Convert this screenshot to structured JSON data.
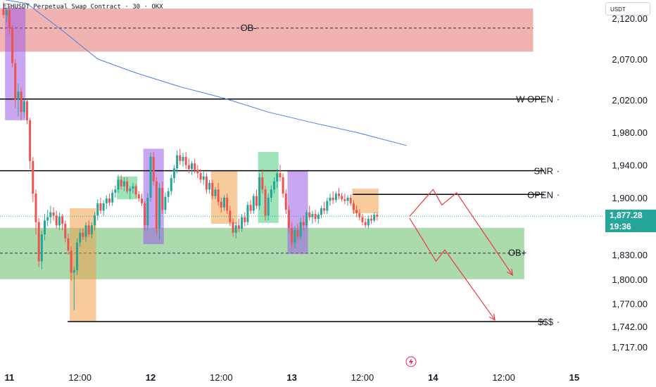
{
  "header": {
    "symbol_line": "ETHUSDT Perpetual Swap Contract · 30 · OKX"
  },
  "currency_label": "USDT",
  "current_price": {
    "value": "1,877.28",
    "countdown": "19:36",
    "price": 1877.28
  },
  "colors": {
    "up": "#26a69a",
    "down": "#ef5350",
    "supply_zone": "#e57373",
    "demand_zone": "#66bb6a",
    "orange_box": "#f0a14a",
    "purple_box": "#9c5ce6",
    "green_box": "#4cd080",
    "ma": "#4a7fe8",
    "projection": "#f23645",
    "level": "#000000"
  },
  "chart_data": {
    "type": "candlestick",
    "title": "ETHUSDT Perpetual Swap Contract · 30 · OKX",
    "ylim": [
      1705,
      2145
    ],
    "y_ticks": [
      {
        "label": "2,120.00",
        "value": 2120
      },
      {
        "label": "2,070.00",
        "value": 2070
      },
      {
        "label": "2,020.00",
        "value": 2020
      },
      {
        "label": "1,980.00",
        "value": 1980
      },
      {
        "label": "1,940.00",
        "value": 1940
      },
      {
        "label": "1,900.00",
        "value": 1900
      },
      {
        "label": "1,830.00",
        "value": 1830
      },
      {
        "label": "1,800.00",
        "value": 1800
      },
      {
        "label": "1,770.00",
        "value": 1770
      },
      {
        "label": "1,742.00",
        "value": 1742
      },
      {
        "label": "1,717.00",
        "value": 1717
      }
    ],
    "x_ticks": [
      {
        "label": "11",
        "bar": 2,
        "bold": true
      },
      {
        "label": "12:00",
        "bar": 26,
        "bold": false
      },
      {
        "label": "12",
        "bar": 50,
        "bold": true
      },
      {
        "label": "12:00",
        "bar": 74,
        "bold": false
      },
      {
        "label": "13",
        "bar": 98,
        "bold": true
      },
      {
        "label": "12:00",
        "bar": 122,
        "bold": false
      },
      {
        "label": "14",
        "bar": 146,
        "bold": true
      },
      {
        "label": "12:00",
        "bar": 170,
        "bold": false
      },
      {
        "label": "15",
        "bar": 194,
        "bold": true
      }
    ],
    "levels": [
      {
        "label": "W OPEN",
        "price": 2021,
        "from_bar": 0,
        "to_bar": 180
      },
      {
        "label": "SNR",
        "price": 1933,
        "from_bar": 0,
        "to_bar": 180
      },
      {
        "label": "OPEN",
        "price": 1904,
        "from_bar": 120,
        "to_bar": 180
      },
      {
        "label": "$$$",
        "price": 1748,
        "from_bar": 23,
        "to_bar": 180
      }
    ],
    "zones": [
      {
        "label": "OB-",
        "kind": "supply",
        "top": 2132,
        "bottom": 2079,
        "mid": 2108,
        "from_bar": 0,
        "to_bar": 180
      },
      {
        "label": "OB+",
        "kind": "demand",
        "top": 1863,
        "bottom": 1800,
        "mid": 1832,
        "from_bar": 0,
        "to_bar": 177
      }
    ],
    "highlight_boxes": [
      {
        "color": "purple",
        "from_bar": 1,
        "to_bar": 7,
        "top": 2133,
        "bottom": 1995
      },
      {
        "color": "orange",
        "from_bar": 23,
        "to_bar": 31,
        "top": 1887,
        "bottom": 1749
      },
      {
        "color": "green",
        "from_bar": 39,
        "to_bar": 45,
        "top": 1926,
        "bottom": 1898
      },
      {
        "color": "purple",
        "from_bar": 48,
        "to_bar": 54,
        "top": 1960,
        "bottom": 1843
      },
      {
        "color": "orange",
        "from_bar": 71,
        "to_bar": 79,
        "top": 1933,
        "bottom": 1868
      },
      {
        "color": "green",
        "from_bar": 87,
        "to_bar": 93,
        "top": 1956,
        "bottom": 1869
      },
      {
        "color": "purple",
        "from_bar": 97,
        "to_bar": 103,
        "top": 1933,
        "bottom": 1831
      },
      {
        "color": "orange",
        "from_bar": 119,
        "to_bar": 127,
        "top": 1911,
        "bottom": 1881
      }
    ],
    "ma_series": [
      {
        "bar": 0,
        "price": 2143
      },
      {
        "bar": 8,
        "price": 2138
      },
      {
        "bar": 20,
        "price": 2105
      },
      {
        "bar": 32,
        "price": 2070
      },
      {
        "bar": 45,
        "price": 2053
      },
      {
        "bar": 60,
        "price": 2036
      },
      {
        "bar": 75,
        "price": 2022
      },
      {
        "bar": 90,
        "price": 2005
      },
      {
        "bar": 105,
        "price": 1992
      },
      {
        "bar": 120,
        "price": 1980
      },
      {
        "bar": 137,
        "price": 1964
      }
    ],
    "projection_paths": [
      [
        {
          "bar": 138,
          "price": 1877
        },
        {
          "bar": 146,
          "price": 1910
        },
        {
          "bar": 149,
          "price": 1891
        },
        {
          "bar": 154,
          "price": 1906
        },
        {
          "bar": 173,
          "price": 1805
        }
      ],
      [
        {
          "bar": 138,
          "price": 1875
        },
        {
          "bar": 147,
          "price": 1822
        },
        {
          "bar": 150,
          "price": 1836
        },
        {
          "bar": 167,
          "price": 1750
        }
      ]
    ],
    "candles": [
      [
        2132,
        2140,
        2120,
        2124
      ],
      [
        2124,
        2133,
        2115,
        2130
      ],
      [
        2130,
        2135,
        2100,
        2108
      ],
      [
        2108,
        2112,
        2060,
        2065
      ],
      [
        2065,
        2070,
        2010,
        2020
      ],
      [
        2020,
        2040,
        2000,
        2030
      ],
      [
        2030,
        2035,
        1995,
        2005
      ],
      [
        2005,
        2022,
        1998,
        2018
      ],
      [
        2018,
        2020,
        1990,
        1995
      ],
      [
        1995,
        1998,
        1935,
        1945
      ],
      [
        1945,
        1950,
        1895,
        1905
      ],
      [
        1905,
        1910,
        1855,
        1870
      ],
      [
        1870,
        1875,
        1815,
        1822
      ],
      [
        1822,
        1860,
        1812,
        1855
      ],
      [
        1855,
        1880,
        1848,
        1872
      ],
      [
        1872,
        1885,
        1865,
        1876
      ],
      [
        1876,
        1890,
        1868,
        1882
      ],
      [
        1882,
        1888,
        1872,
        1878
      ],
      [
        1878,
        1884,
        1862,
        1866
      ],
      [
        1866,
        1882,
        1860,
        1877
      ],
      [
        1877,
        1880,
        1860,
        1868
      ],
      [
        1868,
        1872,
        1845,
        1850
      ],
      [
        1850,
        1856,
        1830,
        1835
      ],
      [
        1835,
        1840,
        1798,
        1808
      ],
      [
        1808,
        1815,
        1762,
        1811
      ],
      [
        1811,
        1850,
        1805,
        1845
      ],
      [
        1845,
        1862,
        1840,
        1857
      ],
      [
        1857,
        1862,
        1848,
        1852
      ],
      [
        1852,
        1870,
        1846,
        1866
      ],
      [
        1866,
        1872,
        1852,
        1855
      ],
      [
        1855,
        1870,
        1850,
        1866
      ],
      [
        1866,
        1882,
        1860,
        1878
      ],
      [
        1878,
        1898,
        1872,
        1893
      ],
      [
        1893,
        1900,
        1880,
        1884
      ],
      [
        1884,
        1897,
        1878,
        1893
      ],
      [
        1893,
        1903,
        1886,
        1899
      ],
      [
        1899,
        1905,
        1890,
        1894
      ],
      [
        1894,
        1910,
        1890,
        1906
      ],
      [
        1906,
        1915,
        1900,
        1910
      ],
      [
        1910,
        1928,
        1906,
        1922
      ],
      [
        1922,
        1928,
        1910,
        1914
      ],
      [
        1914,
        1925,
        1908,
        1920
      ],
      [
        1920,
        1925,
        1905,
        1908
      ],
      [
        1908,
        1914,
        1898,
        1911
      ],
      [
        1911,
        1918,
        1905,
        1914
      ],
      [
        1914,
        1917,
        1900,
        1904
      ],
      [
        1904,
        1908,
        1895,
        1899
      ],
      [
        1899,
        1905,
        1890,
        1893
      ],
      [
        1893,
        1896,
        1860,
        1866
      ],
      [
        1866,
        1905,
        1860,
        1900
      ],
      [
        1900,
        1955,
        1895,
        1950
      ],
      [
        1950,
        1956,
        1915,
        1920
      ],
      [
        1920,
        1925,
        1855,
        1862
      ],
      [
        1862,
        1918,
        1848,
        1912
      ],
      [
        1912,
        1920,
        1880,
        1885
      ],
      [
        1885,
        1906,
        1880,
        1901
      ],
      [
        1901,
        1912,
        1894,
        1908
      ],
      [
        1908,
        1928,
        1903,
        1924
      ],
      [
        1924,
        1940,
        1918,
        1936
      ],
      [
        1936,
        1958,
        1930,
        1952
      ],
      [
        1952,
        1960,
        1940,
        1945
      ],
      [
        1945,
        1955,
        1938,
        1950
      ],
      [
        1950,
        1956,
        1935,
        1940
      ],
      [
        1940,
        1948,
        1930,
        1935
      ],
      [
        1935,
        1945,
        1928,
        1942
      ],
      [
        1942,
        1948,
        1930,
        1934
      ],
      [
        1934,
        1940,
        1924,
        1930
      ],
      [
        1930,
        1935,
        1918,
        1922
      ],
      [
        1922,
        1932,
        1916,
        1926
      ],
      [
        1926,
        1930,
        1905,
        1910
      ],
      [
        1910,
        1922,
        1905,
        1918
      ],
      [
        1918,
        1922,
        1898,
        1902
      ],
      [
        1902,
        1913,
        1898,
        1910
      ],
      [
        1910,
        1918,
        1890,
        1895
      ],
      [
        1895,
        1900,
        1882,
        1888
      ],
      [
        1888,
        1903,
        1884,
        1900
      ],
      [
        1900,
        1905,
        1880,
        1884
      ],
      [
        1884,
        1890,
        1865,
        1870
      ],
      [
        1870,
        1875,
        1852,
        1857
      ],
      [
        1857,
        1870,
        1850,
        1866
      ],
      [
        1866,
        1874,
        1858,
        1862
      ],
      [
        1862,
        1880,
        1858,
        1876
      ],
      [
        1876,
        1882,
        1865,
        1870
      ],
      [
        1870,
        1895,
        1866,
        1891
      ],
      [
        1891,
        1897,
        1880,
        1884
      ],
      [
        1884,
        1905,
        1880,
        1902
      ],
      [
        1902,
        1910,
        1886,
        1890
      ],
      [
        1890,
        1930,
        1885,
        1925
      ],
      [
        1925,
        1935,
        1905,
        1910
      ],
      [
        1910,
        1915,
        1872,
        1878
      ],
      [
        1878,
        1905,
        1872,
        1900
      ],
      [
        1900,
        1915,
        1895,
        1910
      ],
      [
        1910,
        1925,
        1905,
        1920
      ],
      [
        1920,
        1935,
        1912,
        1930
      ],
      [
        1930,
        1940,
        1920,
        1925
      ],
      [
        1925,
        1930,
        1900,
        1905
      ],
      [
        1905,
        1910,
        1880,
        1885
      ],
      [
        1885,
        1890,
        1858,
        1863
      ],
      [
        1863,
        1870,
        1838,
        1845
      ],
      [
        1845,
        1865,
        1838,
        1860
      ],
      [
        1860,
        1868,
        1848,
        1852
      ],
      [
        1852,
        1875,
        1848,
        1870
      ],
      [
        1870,
        1878,
        1860,
        1866
      ],
      [
        1866,
        1885,
        1862,
        1882
      ],
      [
        1882,
        1890,
        1872,
        1876
      ],
      [
        1876,
        1884,
        1868,
        1880
      ],
      [
        1880,
        1885,
        1870,
        1874
      ],
      [
        1874,
        1882,
        1868,
        1879
      ],
      [
        1879,
        1890,
        1875,
        1887
      ],
      [
        1887,
        1895,
        1880,
        1884
      ],
      [
        1884,
        1900,
        1880,
        1896
      ],
      [
        1896,
        1905,
        1890,
        1900
      ],
      [
        1900,
        1908,
        1892,
        1897
      ],
      [
        1897,
        1908,
        1894,
        1905
      ],
      [
        1905,
        1912,
        1898,
        1902
      ],
      [
        1902,
        1906,
        1895,
        1898
      ],
      [
        1898,
        1905,
        1892,
        1896
      ],
      [
        1896,
        1903,
        1890,
        1900
      ],
      [
        1900,
        1904,
        1890,
        1893
      ],
      [
        1893,
        1897,
        1880,
        1885
      ],
      [
        1885,
        1890,
        1876,
        1881
      ],
      [
        1881,
        1886,
        1872,
        1876
      ],
      [
        1876,
        1880,
        1866,
        1870
      ],
      [
        1870,
        1875,
        1863,
        1866
      ],
      [
        1866,
        1878,
        1862,
        1874
      ],
      [
        1874,
        1879,
        1868,
        1872
      ],
      [
        1872,
        1882,
        1870,
        1879
      ],
      [
        1879,
        1882,
        1872,
        1877
      ]
    ]
  }
}
